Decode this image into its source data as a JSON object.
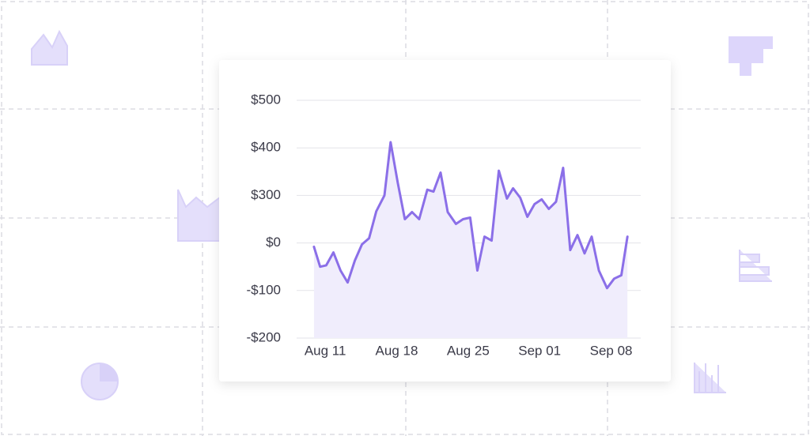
{
  "chart_data": {
    "type": "line",
    "fill_area": true,
    "color": "#8b6fe8",
    "area_color": "#f0edfc",
    "x": [
      9.9,
      10.5,
      11.1,
      11.8,
      12.5,
      13.2,
      13.9,
      14.6,
      15.3,
      16.0,
      16.8,
      17.4,
      18.1,
      18.8,
      19.5,
      20.2,
      21.0,
      21.6,
      22.3,
      23.0,
      23.8,
      24.5,
      25.2,
      25.9,
      26.6,
      27.3,
      28.0,
      28.8,
      29.4,
      30.1,
      30.8,
      31.5,
      32.2,
      32.9,
      33.6,
      34.3,
      35.0,
      35.7,
      36.4,
      37.1,
      37.8,
      38.6,
      39.3,
      40.0,
      40.6
    ],
    "values": [
      -8,
      -50,
      -47,
      -20,
      -58,
      -83,
      -37,
      -3,
      30,
      200,
      300,
      412,
      327,
      150,
      195,
      150,
      312,
      308,
      348,
      195,
      120,
      150,
      160,
      -58,
      40,
      15,
      352,
      280,
      315,
      285,
      165,
      245,
      275,
      215,
      260,
      358,
      -15,
      50,
      -22,
      40,
      -58,
      -95,
      -75,
      -68,
      40
    ],
    "xlim": [
      8.2,
      41.9
    ],
    "xticks": [
      {
        "value": 11,
        "label": "Aug 11"
      },
      {
        "value": 18,
        "label": "Aug 18"
      },
      {
        "value": 25,
        "label": "Aug 25"
      },
      {
        "value": 32,
        "label": "Sep 01"
      },
      {
        "value": 39,
        "label": "Sep 08"
      }
    ],
    "ylim": [
      -200,
      500
    ],
    "yticks": [
      {
        "value": 500,
        "label": "$500"
      },
      {
        "value": 400,
        "label": "$400"
      },
      {
        "value": 300,
        "label": "$300"
      },
      {
        "value": 0,
        "label": "$0"
      },
      {
        "value": -100,
        "label": "-$100"
      },
      {
        "value": -200,
        "label": "-$200"
      }
    ],
    "grid": true
  }
}
